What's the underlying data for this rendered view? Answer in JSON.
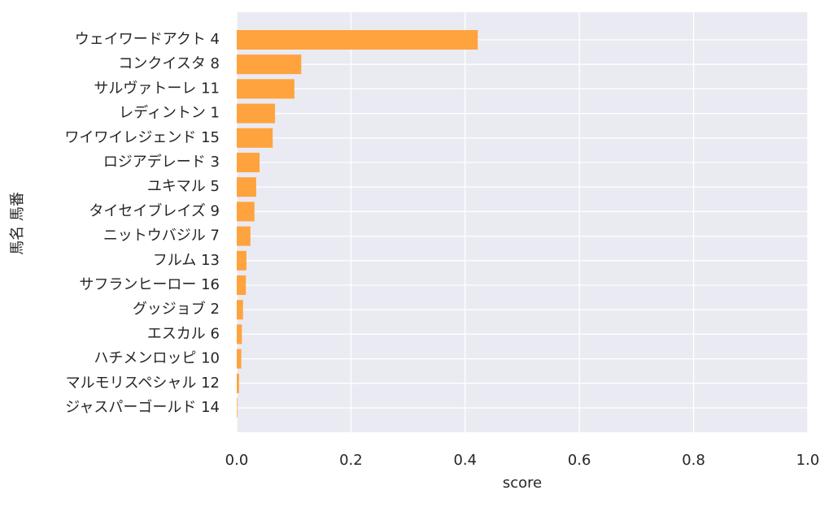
{
  "chart_data": {
    "type": "barh",
    "categories": [
      "ウェイワードアクト 4",
      "コンクイスタ 8",
      "サルヴァトーレ 11",
      "レディントン 1",
      "ワイワイレジェンド 15",
      "ロジアデレード 3",
      "ユキマル 5",
      "タイセイブレイズ 9",
      "ニットウバジル 7",
      "フルム 13",
      "サフランヒーロー 16",
      "グッジョブ 2",
      "エスカル 6",
      "ハチメンロッピ 10",
      "マルモリスペシャル 12",
      "ジャスパーゴールド 14"
    ],
    "values": [
      0.422,
      0.113,
      0.101,
      0.067,
      0.063,
      0.04,
      0.034,
      0.031,
      0.024,
      0.017,
      0.016,
      0.011,
      0.009,
      0.008,
      0.004,
      0.001
    ],
    "color": "#ff9f33",
    "xlabel": "score",
    "ylabel": "馬名 馬番",
    "xlim": [
      0,
      1
    ],
    "xticks": [
      {
        "value": 0,
        "label": "0.0"
      },
      0.2,
      0.4,
      0.6,
      0.8,
      {
        "value": 1,
        "label": "1.0"
      }
    ],
    "grid": true
  }
}
